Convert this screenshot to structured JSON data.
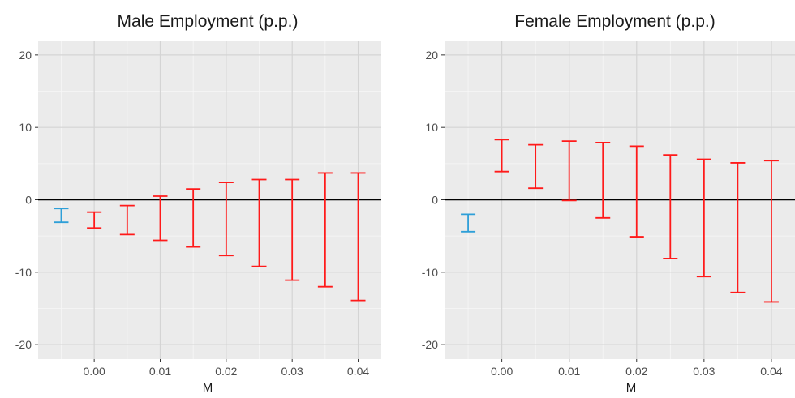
{
  "chart_data": [
    {
      "type": "errorbar",
      "title": "Male Employment (p.p.)",
      "xlabel": "M",
      "ylabel": "",
      "xlim": [
        -0.0085,
        0.0435
      ],
      "ylim": [
        -22,
        22
      ],
      "x_ticks": [
        0.0,
        0.01,
        0.02,
        0.03,
        0.04
      ],
      "x_tick_labels": [
        "0.00",
        "0.01",
        "0.02",
        "0.03",
        "0.04"
      ],
      "y_ticks": [
        -20,
        -10,
        0,
        10,
        20
      ],
      "y_tick_labels": [
        "-20",
        "-10",
        "0",
        "10",
        "20"
      ],
      "reference_line_y": 0,
      "grid": true,
      "series": [
        {
          "color": "#2e9fd8",
          "x": [
            -0.005
          ],
          "lower": [
            -3.1
          ],
          "upper": [
            -1.2
          ]
        },
        {
          "color": "#ff1a1a",
          "x": [
            0.0,
            0.005,
            0.01,
            0.015,
            0.02,
            0.025,
            0.03,
            0.035,
            0.04
          ],
          "lower": [
            -3.9,
            -4.8,
            -5.6,
            -6.5,
            -7.7,
            -9.2,
            -11.1,
            -12.0,
            -13.9
          ],
          "upper": [
            -1.7,
            -0.8,
            0.5,
            1.5,
            2.4,
            2.8,
            2.8,
            3.7,
            3.7
          ]
        }
      ]
    },
    {
      "type": "errorbar",
      "title": "Female Employment (p.p.)",
      "xlabel": "M",
      "ylabel": "",
      "xlim": [
        -0.0085,
        0.0435
      ],
      "ylim": [
        -22,
        22
      ],
      "x_ticks": [
        0.0,
        0.01,
        0.02,
        0.03,
        0.04
      ],
      "x_tick_labels": [
        "0.00",
        "0.01",
        "0.02",
        "0.03",
        "0.04"
      ],
      "y_ticks": [
        -20,
        -10,
        0,
        10,
        20
      ],
      "y_tick_labels": [
        "-20",
        "-10",
        "0",
        "10",
        "20"
      ],
      "reference_line_y": 0,
      "grid": true,
      "series": [
        {
          "color": "#2e9fd8",
          "x": [
            -0.005
          ],
          "lower": [
            -4.4
          ],
          "upper": [
            -2.0
          ]
        },
        {
          "color": "#ff1a1a",
          "x": [
            0.0,
            0.005,
            0.01,
            0.015,
            0.02,
            0.025,
            0.03,
            0.035,
            0.04
          ],
          "lower": [
            3.9,
            1.6,
            -0.1,
            -2.5,
            -5.1,
            -8.1,
            -10.6,
            -12.8,
            -14.1
          ],
          "upper": [
            8.3,
            7.6,
            8.1,
            7.9,
            7.4,
            6.2,
            5.6,
            5.1,
            5.4
          ]
        }
      ]
    }
  ]
}
